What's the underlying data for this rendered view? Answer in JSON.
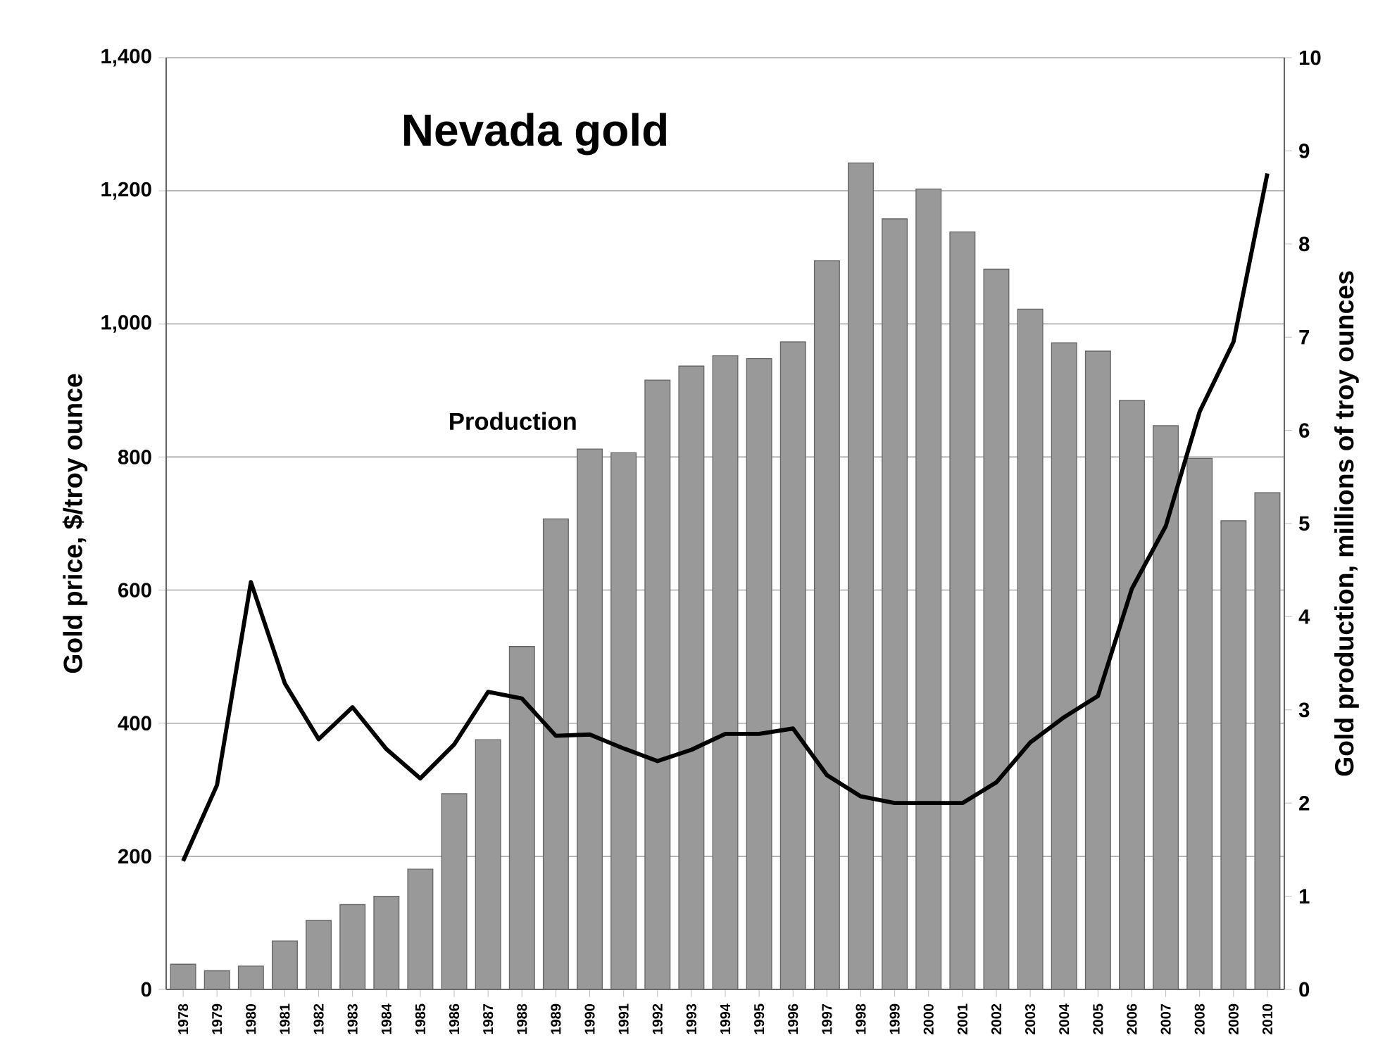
{
  "chart_data": {
    "type": "bar",
    "title": "Nevada gold",
    "categories": [
      "1978",
      "1979",
      "1980",
      "1981",
      "1982",
      "1983",
      "1984",
      "1985",
      "1986",
      "1987",
      "1988",
      "1989",
      "1990",
      "1991",
      "1992",
      "1993",
      "1994",
      "1995",
      "1996",
      "1997",
      "1998",
      "1999",
      "2000",
      "2001",
      "2002",
      "2003",
      "2004",
      "2005",
      "2006",
      "2007",
      "2008",
      "2009",
      "2010"
    ],
    "series": [
      {
        "axis": "y2",
        "color": "#999999",
        "values": [
          0.27,
          0.2,
          0.25,
          0.52,
          0.74,
          0.91,
          1.0,
          1.29,
          2.1,
          2.68,
          3.68,
          5.05,
          5.8,
          5.76,
          6.54,
          6.69,
          6.8,
          6.77,
          6.95,
          7.82,
          8.87,
          8.27,
          8.59,
          8.13,
          7.73,
          7.3,
          6.94,
          6.85,
          6.32,
          6.05,
          5.7,
          5.03,
          5.33
        ]
      },
      {
        "type": "line",
        "axis": "y",
        "color": "#000000",
        "values": [
          193,
          307,
          612,
          460,
          376,
          424,
          361,
          317,
          368,
          447,
          437,
          381,
          383,
          362,
          343,
          360,
          384,
          384,
          392,
          322,
          290,
          280,
          280,
          280,
          311,
          371,
          409,
          441,
          602,
          696,
          868,
          973,
          1226
        ]
      }
    ],
    "ylabel": "Gold price, $/troy ounce",
    "y2label": "Gold production, millions of troy ounces",
    "ylim": [
      0,
      1400
    ],
    "yticks": [
      0,
      200,
      400,
      600,
      800,
      {
        "value": 1000,
        "label": "1,000"
      },
      {
        "value": 1200,
        "label": "1,200"
      },
      {
        "value": 1400,
        "label": "1,400"
      }
    ],
    "y2lim": [
      0,
      10
    ],
    "y2ticks": [
      0,
      1,
      2,
      3,
      4,
      5,
      6,
      7,
      8,
      9,
      10
    ],
    "grid": "y",
    "line_style": "solid",
    "marker": "none",
    "annotations": [
      "Production"
    ]
  }
}
